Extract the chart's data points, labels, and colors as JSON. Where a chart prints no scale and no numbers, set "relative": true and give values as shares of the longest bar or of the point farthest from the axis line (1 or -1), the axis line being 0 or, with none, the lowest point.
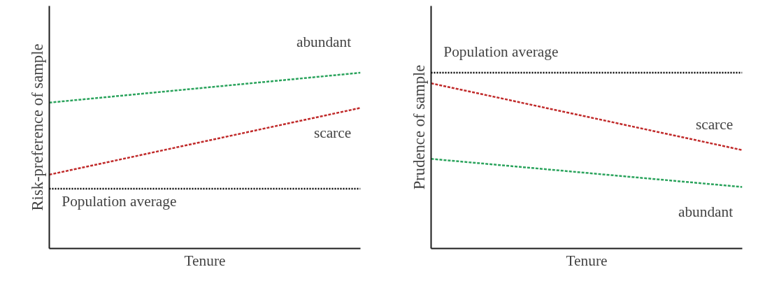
{
  "chart_data": [
    {
      "type": "line",
      "relative": true,
      "xlabel": "Tenure",
      "ylabel": "Risk-preference of sample",
      "categories": [
        null,
        null
      ],
      "legend": false,
      "line_style": "dashed",
      "marker": "none",
      "series": [
        {
          "name": "abundant",
          "color": "#2aa35c",
          "values": [
            0.83,
            1.0
          ]
        },
        {
          "name": "scarce",
          "color": "#c02a2a",
          "values": [
            0.42,
            0.8
          ]
        },
        {
          "name": "Population average",
          "color": "#000000",
          "line_style": "dotted",
          "values": [
            0.34,
            0.34
          ]
        }
      ]
    },
    {
      "type": "line",
      "relative": true,
      "xlabel": "Tenure",
      "ylabel": "Prudence of sample",
      "categories": [
        null,
        null
      ],
      "legend": false,
      "line_style": "dashed",
      "marker": "none",
      "series": [
        {
          "name": "Population average",
          "color": "#000000",
          "line_style": "dotted",
          "values": [
            1.0,
            1.0
          ]
        },
        {
          "name": "scarce",
          "color": "#c02a2a",
          "values": [
            0.94,
            0.56
          ]
        },
        {
          "name": "abundant",
          "color": "#2aa35c",
          "values": [
            0.51,
            0.35
          ]
        }
      ]
    }
  ]
}
